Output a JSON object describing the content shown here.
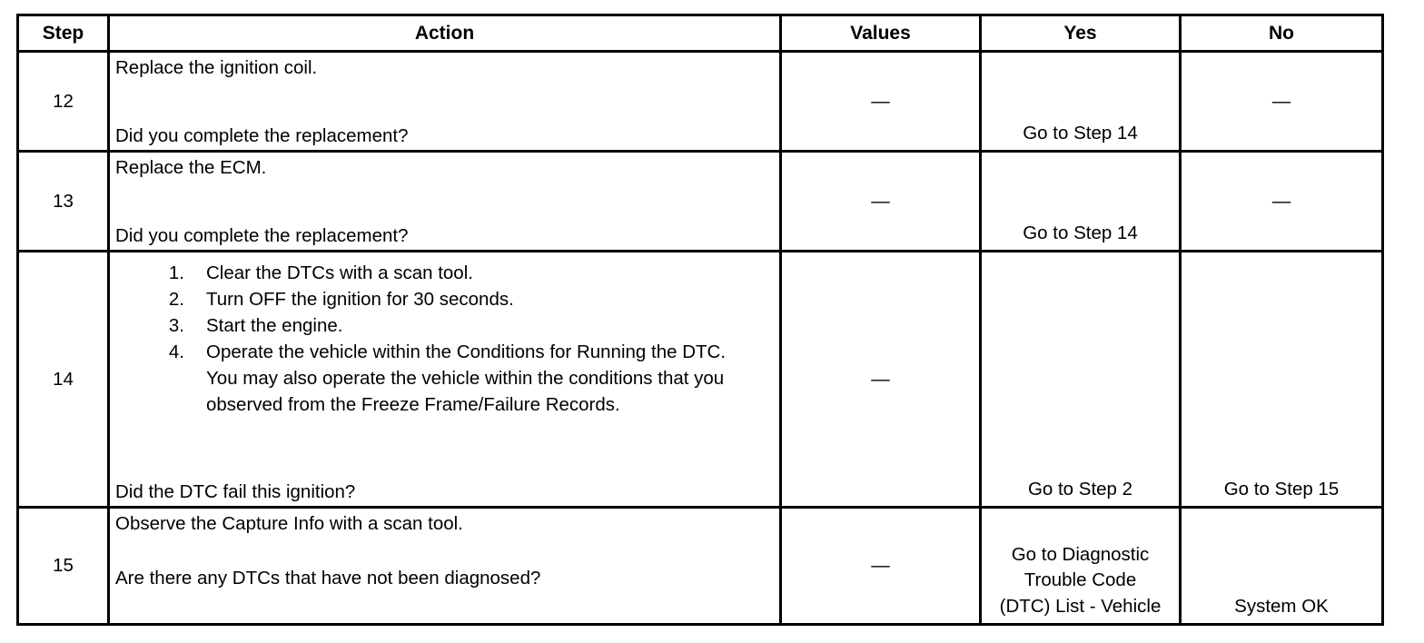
{
  "headers": [
    "Step",
    "Action",
    "Values",
    "Yes",
    "No"
  ],
  "rows": [
    {
      "step": "12",
      "action_top": "Replace the ignition coil.",
      "action_bottom": "Did you complete the replacement?",
      "values": "—",
      "yes": "Go to Step 14",
      "no": "—"
    },
    {
      "step": "13",
      "action_top": "Replace the ECM.",
      "action_bottom": "Did you complete the replacement?",
      "values": "—",
      "yes": "Go to Step 14",
      "no": "—"
    },
    {
      "step": "14",
      "action_list": [
        {
          "n": "1.",
          "text": "Clear the DTCs with a scan tool."
        },
        {
          "n": "2.",
          "text": "Turn OFF the ignition for 30 seconds."
        },
        {
          "n": "3.",
          "text": "Start the engine."
        },
        {
          "n": "4.",
          "text": "Operate the vehicle within the Conditions for Running the DTC. You may also operate the vehicle within the conditions that you observed from the Freeze Frame/Failure Records."
        }
      ],
      "action_bottom": "Did the DTC fail this ignition?",
      "values": "—",
      "yes": "Go to Step 2",
      "no": "Go to Step 15"
    },
    {
      "step": "15",
      "action_top": "Observe the Capture Info with a scan tool.",
      "action_bottom": "Are there any DTCs that have not been diagnosed?",
      "values": "—",
      "yes": "Go to Diagnostic Trouble Code (DTC) List - Vehicle",
      "no": "System OK"
    }
  ]
}
